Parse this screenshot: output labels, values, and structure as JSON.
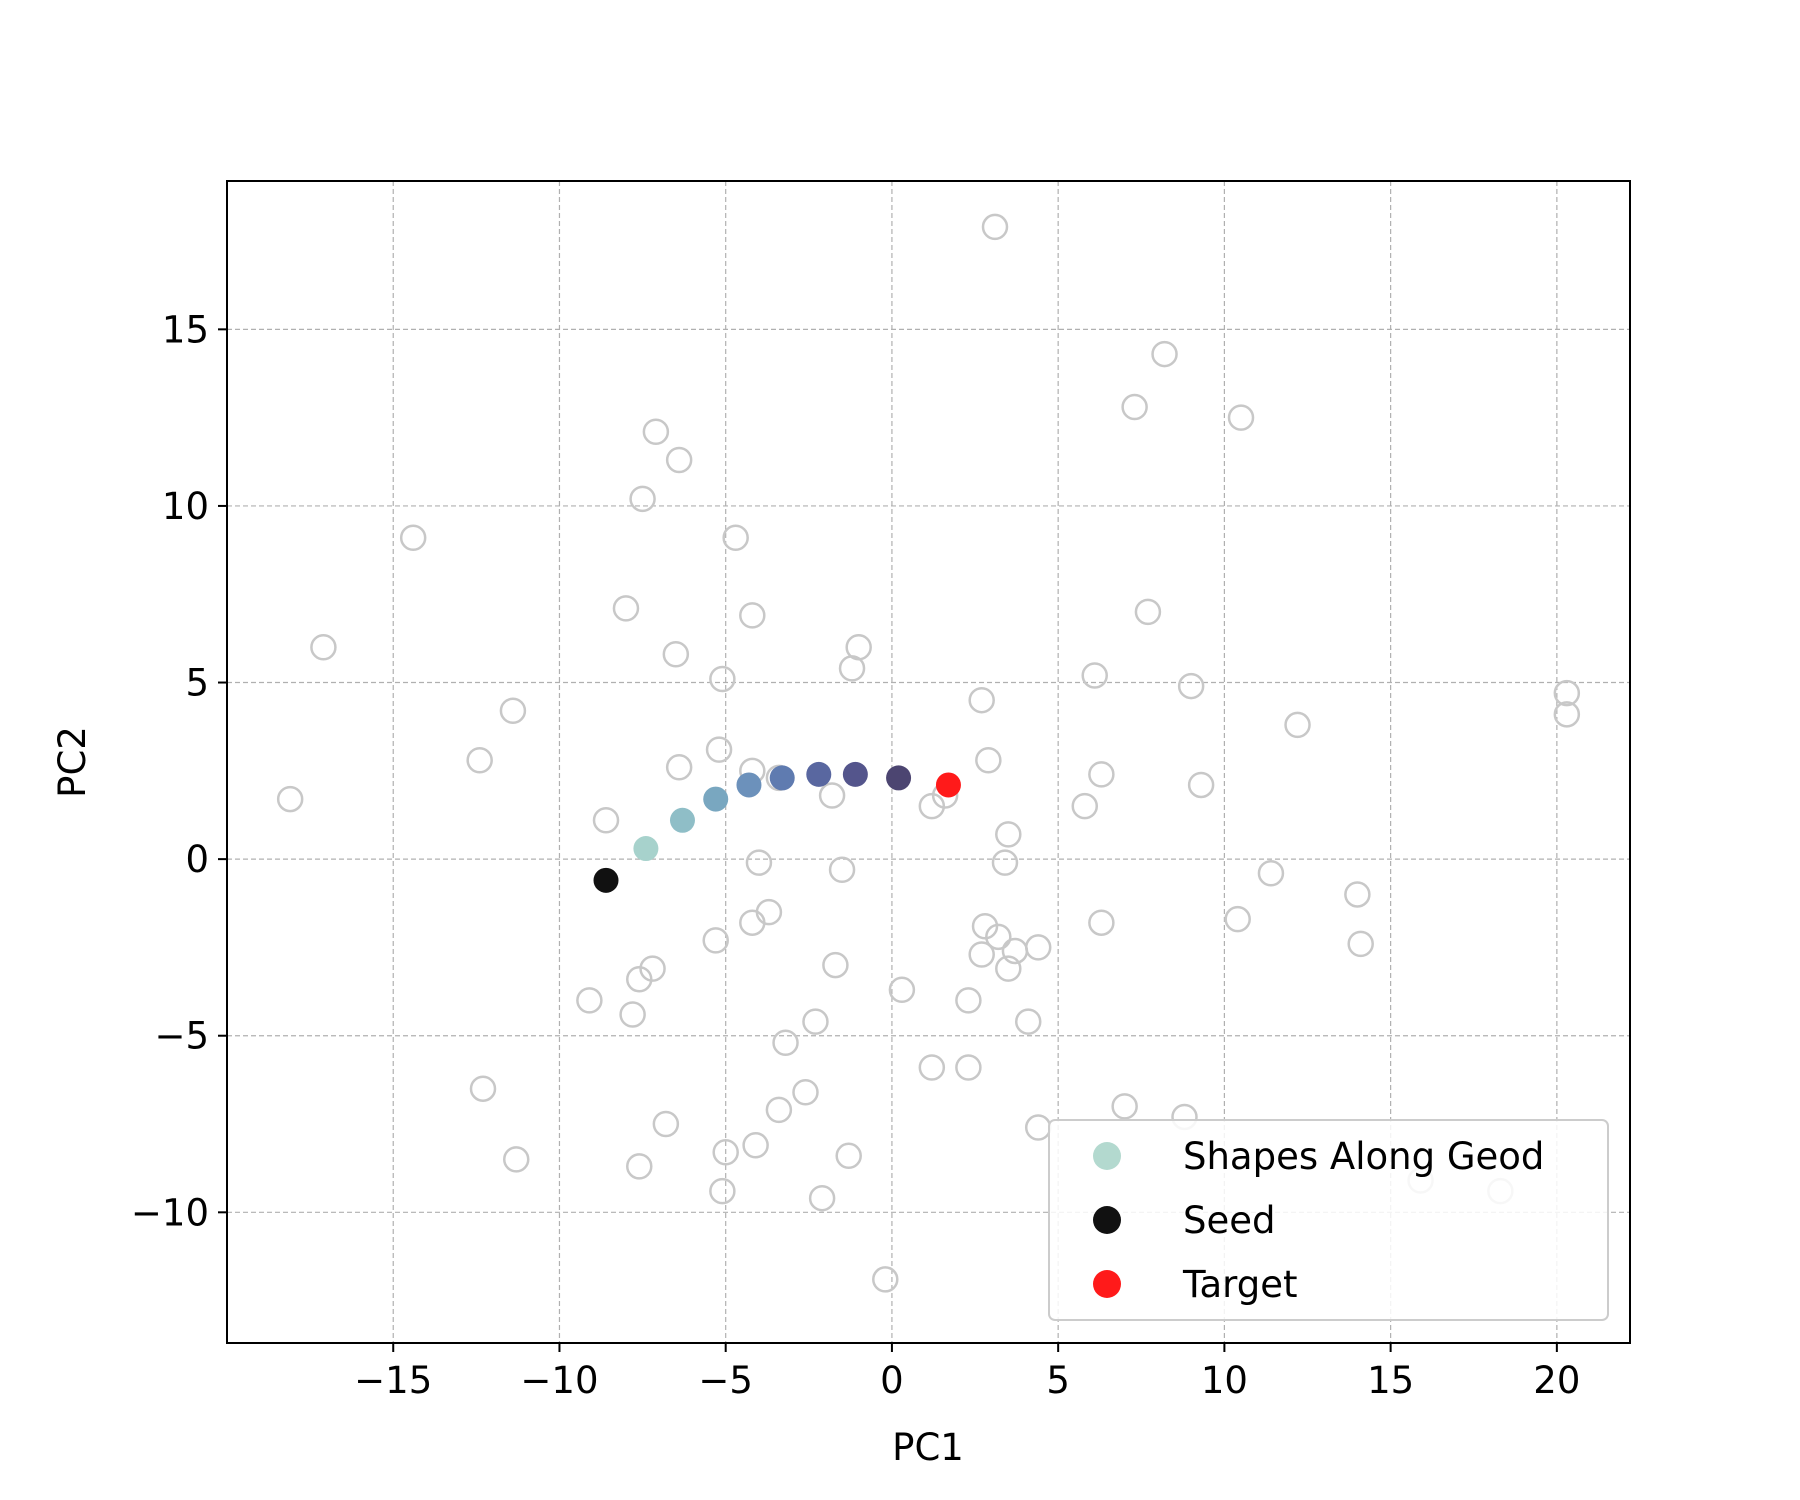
{
  "chart_data": {
    "type": "scatter",
    "xlabel": "PC1",
    "ylabel": "PC2",
    "xlim": [
      -20,
      22.2
    ],
    "ylim": [
      -13.7,
      19.2
    ],
    "xticks": [
      -15,
      -10,
      -5,
      0,
      5,
      10,
      15,
      20
    ],
    "yticks": [
      -10,
      -5,
      0,
      5,
      10,
      15
    ],
    "xtick_labels": [
      "−15",
      "−10",
      "−5",
      "0",
      "5",
      "10",
      "15",
      "20"
    ],
    "ytick_labels": [
      "−10",
      "−5",
      "0",
      "5",
      "10",
      "15"
    ],
    "grid": true,
    "legend_position": "lower right",
    "background_points": {
      "color": "#c8c8c8",
      "x": [
        3.1,
        8.2,
        7.3,
        10.5,
        -7.1,
        -6.4,
        -7.5,
        -14.4,
        -4.7,
        -8.0,
        -4.2,
        -17.1,
        7.7,
        -6.5,
        -1.0,
        -1.2,
        -5.1,
        6.1,
        9.0,
        20.3,
        20.3,
        2.7,
        -11.4,
        12.2,
        -12.4,
        -6.4,
        -5.2,
        -4.2,
        2.9,
        6.3,
        -3.4,
        9.3,
        -18.1,
        -1.8,
        1.2,
        1.6,
        5.8,
        -8.6,
        3.5,
        -4.0,
        3.4,
        -1.5,
        11.4,
        -3.7,
        -4.2,
        14.0,
        6.3,
        10.4,
        2.8,
        3.2,
        -5.3,
        4.4,
        3.7,
        14.1,
        2.7,
        -1.7,
        -7.2,
        3.5,
        -7.6,
        0.3,
        -9.1,
        -7.8,
        2.3,
        4.1,
        -2.3,
        -3.2,
        1.2,
        2.3,
        -12.3,
        -2.6,
        -3.4,
        7.0,
        -6.8,
        4.4,
        8.8,
        -4.1,
        -5.0,
        -1.3,
        -11.3,
        -7.6,
        -5.1,
        -2.1,
        -0.2,
        15.9,
        18.3
      ],
      "y": [
        17.9,
        14.3,
        12.8,
        12.5,
        12.1,
        11.3,
        10.2,
        9.1,
        9.1,
        7.1,
        6.9,
        6.0,
        7.0,
        5.8,
        6.0,
        5.4,
        5.1,
        5.2,
        4.9,
        4.7,
        4.1,
        4.5,
        4.2,
        3.8,
        2.8,
        2.6,
        3.1,
        2.5,
        2.8,
        2.4,
        2.3,
        2.1,
        1.7,
        1.8,
        1.5,
        1.8,
        1.5,
        1.1,
        0.7,
        -0.1,
        -0.1,
        -0.3,
        -0.4,
        -1.5,
        -1.8,
        -1.0,
        -1.8,
        -1.7,
        -1.9,
        -2.2,
        -2.3,
        -2.5,
        -2.6,
        -2.4,
        -2.7,
        -3.0,
        -3.1,
        -3.1,
        -3.4,
        -3.7,
        -4.0,
        -4.4,
        -4.0,
        -4.6,
        -4.6,
        -5.2,
        -5.9,
        -5.9,
        -6.5,
        -6.6,
        -7.1,
        -7.0,
        -7.5,
        -7.6,
        -7.3,
        -8.1,
        -8.3,
        -8.4,
        -8.5,
        -8.7,
        -9.4,
        -9.6,
        -11.9,
        -9.1,
        -9.4
      ]
    },
    "series": [
      {
        "name": "Shapes Along Geod",
        "legend_color": "#b3d9cf",
        "x": [
          -7.4,
          -6.3,
          -5.3,
          -4.3,
          -3.3,
          -2.2,
          -1.1,
          0.2
        ],
        "y": [
          0.3,
          1.1,
          1.7,
          2.1,
          2.3,
          2.4,
          2.4,
          2.3
        ],
        "colors": [
          "#a7d2cc",
          "#8fbec7",
          "#79a7c0",
          "#6c91bb",
          "#5f7bb0",
          "#5967a0",
          "#54558c",
          "#4c4571"
        ]
      },
      {
        "name": "Seed",
        "color": "#111111",
        "x": [
          -8.6
        ],
        "y": [
          -0.6
        ]
      },
      {
        "name": "Target",
        "color": "#ff1a1a",
        "x": [
          1.7
        ],
        "y": [
          2.1
        ]
      }
    ]
  }
}
